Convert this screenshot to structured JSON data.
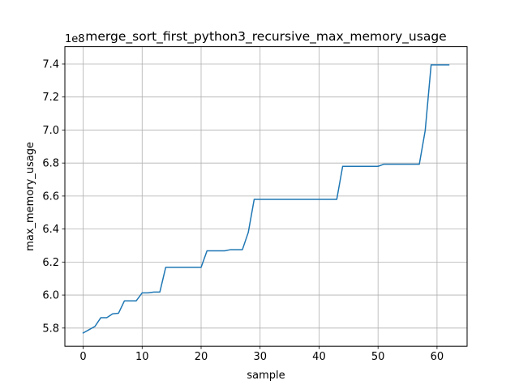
{
  "chart_data": {
    "type": "line",
    "title": "merge_sort_first_python3_recursive_max_memory_usage",
    "xlabel": "sample",
    "ylabel": "max_memory_usage",
    "offset_label": "1e8",
    "xlim": [
      -3.1,
      65.1
    ],
    "ylim": [
      5.69,
      7.505
    ],
    "x_ticks": [
      0,
      10,
      20,
      30,
      40,
      50,
      60
    ],
    "y_ticks": [
      5.8,
      6.0,
      6.2,
      6.4,
      6.6,
      6.8,
      7.0,
      7.2,
      7.4
    ],
    "grid": true,
    "colors": {
      "line": "#1f77b4",
      "grid": "#b0b0b0"
    },
    "series": [
      {
        "x": [
          0,
          1,
          2,
          3,
          4,
          5,
          6,
          7,
          8,
          9,
          10,
          11,
          12,
          13,
          14,
          15,
          16,
          17,
          18,
          19,
          20,
          21,
          22,
          23,
          24,
          25,
          26,
          27,
          28,
          29,
          30,
          31,
          32,
          33,
          34,
          35,
          36,
          37,
          38,
          39,
          40,
          41,
          42,
          43,
          44,
          45,
          46,
          47,
          48,
          49,
          50,
          51,
          52,
          53,
          54,
          55,
          56,
          57,
          58,
          59,
          60,
          61,
          62
        ],
        "values": [
          5.77,
          5.79,
          5.81,
          5.863,
          5.863,
          5.886,
          5.89,
          5.965,
          5.965,
          5.965,
          6.013,
          6.013,
          6.018,
          6.018,
          6.168,
          6.168,
          6.168,
          6.168,
          6.168,
          6.168,
          6.168,
          6.268,
          6.268,
          6.268,
          6.268,
          6.275,
          6.275,
          6.275,
          6.38,
          6.58,
          6.58,
          6.58,
          6.58,
          6.58,
          6.58,
          6.58,
          6.58,
          6.58,
          6.58,
          6.58,
          6.58,
          6.58,
          6.58,
          6.58,
          6.78,
          6.78,
          6.78,
          6.78,
          6.78,
          6.78,
          6.78,
          6.793,
          6.793,
          6.793,
          6.793,
          6.793,
          6.793,
          6.793,
          6.998,
          7.395,
          7.395,
          7.395,
          7.395
        ]
      }
    ]
  }
}
